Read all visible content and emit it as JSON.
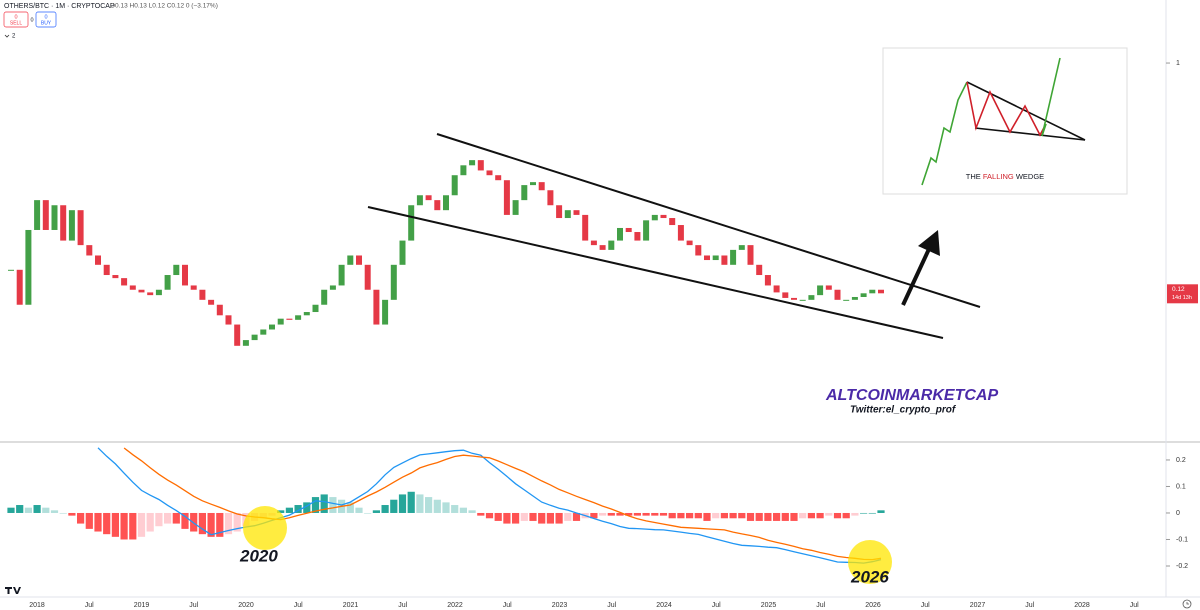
{
  "header": {
    "symbol": "OTHERS/BTC · 1M · CRYPTOCAP",
    "ohlc": "O0.13 H0.13 L0.12 C0.12 0 (−3.17%)",
    "sell_price": "0",
    "sell": "SELL",
    "spread": "0",
    "buy_price": "0",
    "buy": "BUY",
    "indicators_count": "2"
  },
  "annotations": {
    "brand": "ALTCOINMARKETCAP",
    "twitter": "Twitter:el_crypto_prof",
    "label_2020": "2020",
    "label_2026": "2026",
    "inset_title": [
      "THE",
      "FALLING",
      "WEDGE"
    ]
  },
  "time_axis": [
    "2018",
    "Jul",
    "2019",
    "Jul",
    "2020",
    "Jul",
    "2021",
    "Jul",
    "2022",
    "Jul",
    "2023",
    "Jul",
    "2024",
    "Jul",
    "2025",
    "Jul",
    "2026",
    "Jul",
    "2027",
    "Jul",
    "2028",
    "Jul"
  ],
  "chart_data": [
    {
      "type": "candlestick",
      "log_scale": true,
      "grid": false,
      "up_color": "#43a047",
      "down_color": "#e53946",
      "ylim": [
        0.0308,
        1.787
      ],
      "yticks": [
        1
      ],
      "last_label": "0.12",
      "countdown": "14d 13h",
      "values": [
        0.149,
        0.108,
        0.215,
        0.283,
        0.215,
        0.27,
        0.195,
        0.258,
        0.187,
        0.17,
        0.156,
        0.142,
        0.138,
        0.129,
        0.124,
        0.121,
        0.118,
        0.124,
        0.142,
        0.156,
        0.129,
        0.124,
        0.113,
        0.108,
        0.098,
        0.09,
        0.074,
        0.078,
        0.082,
        0.086,
        0.09,
        0.095,
        0.094,
        0.098,
        0.101,
        0.108,
        0.124,
        0.129,
        0.156,
        0.17,
        0.156,
        0.124,
        0.09,
        0.113,
        0.156,
        0.195,
        0.27,
        0.296,
        0.283,
        0.258,
        0.296,
        0.356,
        0.39,
        0.409,
        0.372,
        0.356,
        0.34,
        0.247,
        0.283,
        0.325,
        0.334,
        0.31,
        0.27,
        0.24,
        0.258,
        0.247,
        0.195,
        0.187,
        0.179,
        0.195,
        0.219,
        0.211,
        0.195,
        0.235,
        0.247,
        0.24,
        0.225,
        0.195,
        0.187,
        0.17,
        0.163,
        0.17,
        0.156,
        0.179,
        0.187,
        0.156,
        0.142,
        0.129,
        0.121,
        0.115,
        0.113,
        0.113,
        0.118,
        0.129,
        0.124,
        0.113,
        0.113,
        0.116,
        0.12,
        0.124,
        0.12
      ]
    },
    {
      "type": "macd",
      "grid": false,
      "ylim": [
        -0.317,
        0.264
      ],
      "yticks": [
        -0.2,
        -0.1,
        0,
        0.1,
        0.2
      ],
      "histogram_colors": [
        "#26a69a",
        "#b2dfdb",
        "#ff5252",
        "#ffcdd2"
      ],
      "macd_color": "#2196f3",
      "signal_color": "#ff6d00",
      "histogram": [
        0.02,
        0.03,
        0.02,
        0.03,
        0.02,
        0.01,
        0,
        -0.01,
        -0.04,
        -0.06,
        -0.07,
        -0.08,
        -0.09,
        -0.1,
        -0.1,
        -0.09,
        -0.07,
        -0.05,
        -0.04,
        -0.04,
        -0.06,
        -0.07,
        -0.08,
        -0.09,
        -0.09,
        -0.08,
        -0.07,
        -0.05,
        -0.03,
        -0.02,
        -0.01,
        0.01,
        0.02,
        0.03,
        0.04,
        0.06,
        0.07,
        0.06,
        0.05,
        0.04,
        0.02,
        0,
        0.01,
        0.03,
        0.05,
        0.07,
        0.08,
        0.07,
        0.06,
        0.05,
        0.04,
        0.03,
        0.02,
        0.01,
        -0.01,
        -0.02,
        -0.03,
        -0.04,
        -0.04,
        -0.03,
        -0.03,
        -0.04,
        -0.04,
        -0.04,
        -0.03,
        -0.03,
        -0.02,
        -0.02,
        -0.01,
        -0.01,
        -0.01,
        -0.01,
        -0.01,
        -0.01,
        -0.01,
        -0.01,
        -0.02,
        -0.02,
        -0.02,
        -0.02,
        -0.03,
        -0.02,
        -0.02,
        -0.02,
        -0.02,
        -0.03,
        -0.03,
        -0.03,
        -0.03,
        -0.03,
        -0.03,
        -0.02,
        -0.02,
        -0.02,
        -0.01,
        -0.02,
        -0.02,
        -0.01,
        0,
        0,
        0.01
      ],
      "macd": [
        null,
        null,
        null,
        null,
        null,
        null,
        null,
        null,
        null,
        null,
        0.246,
        0.214,
        0.185,
        0.15,
        0.116,
        0.085,
        0.067,
        0.051,
        0.029,
        0.009,
        -0.013,
        -0.038,
        -0.061,
        -0.082,
        -0.074,
        -0.066,
        -0.059,
        -0.053,
        -0.048,
        -0.039,
        -0.028,
        -0.018,
        -0.008,
        0.009,
        0.026,
        0.046,
        0.043,
        0.036,
        0.03,
        0.041,
        0.061,
        0.081,
        0.11,
        0.144,
        0.172,
        0.189,
        0.205,
        0.219,
        0.223,
        0.227,
        0.231,
        0.235,
        0.237,
        0.225,
        0.218,
        0.19,
        0.165,
        0.138,
        0.11,
        0.087,
        0.064,
        0.041,
        0.029,
        0.018,
        0.011,
        0.0,
        -0.01,
        -0.021,
        -0.031,
        -0.04,
        -0.051,
        -0.058,
        -0.059,
        -0.061,
        -0.063,
        -0.064,
        -0.068,
        -0.072,
        -0.077,
        -0.081,
        -0.09,
        -0.098,
        -0.107,
        -0.115,
        -0.122,
        -0.124,
        -0.126,
        -0.129,
        -0.131,
        -0.138,
        -0.146,
        -0.154,
        -0.161,
        -0.169,
        -0.177,
        -0.185,
        -0.186,
        -0.187,
        -0.189,
        -0.184,
        -0.176
      ],
      "signal": [
        null,
        null,
        null,
        null,
        null,
        null,
        null,
        null,
        null,
        null,
        null,
        null,
        null,
        0.245,
        0.22,
        0.197,
        0.171,
        0.146,
        0.124,
        0.105,
        0.084,
        0.063,
        0.046,
        0.033,
        0.021,
        0.008,
        -0.004,
        -0.011,
        -0.015,
        -0.018,
        -0.022,
        -0.025,
        -0.018,
        -0.009,
        -0.001,
        0.007,
        0.014,
        0.019,
        0.025,
        0.03,
        0.047,
        0.064,
        0.079,
        0.097,
        0.116,
        0.135,
        0.151,
        0.17,
        0.181,
        0.19,
        0.202,
        0.213,
        0.218,
        0.215,
        0.211,
        0.208,
        0.196,
        0.182,
        0.168,
        0.155,
        0.138,
        0.121,
        0.106,
        0.089,
        0.076,
        0.063,
        0.051,
        0.039,
        0.026,
        0.015,
        0.002,
        -0.011,
        -0.022,
        -0.03,
        -0.036,
        -0.042,
        -0.048,
        -0.054,
        -0.056,
        -0.058,
        -0.06,
        -0.062,
        -0.064,
        -0.072,
        -0.079,
        -0.085,
        -0.092,
        -0.103,
        -0.111,
        -0.118,
        -0.126,
        -0.135,
        -0.141,
        -0.149,
        -0.156,
        -0.164,
        -0.168,
        -0.171,
        -0.175,
        -0.176,
        -0.171
      ]
    }
  ]
}
